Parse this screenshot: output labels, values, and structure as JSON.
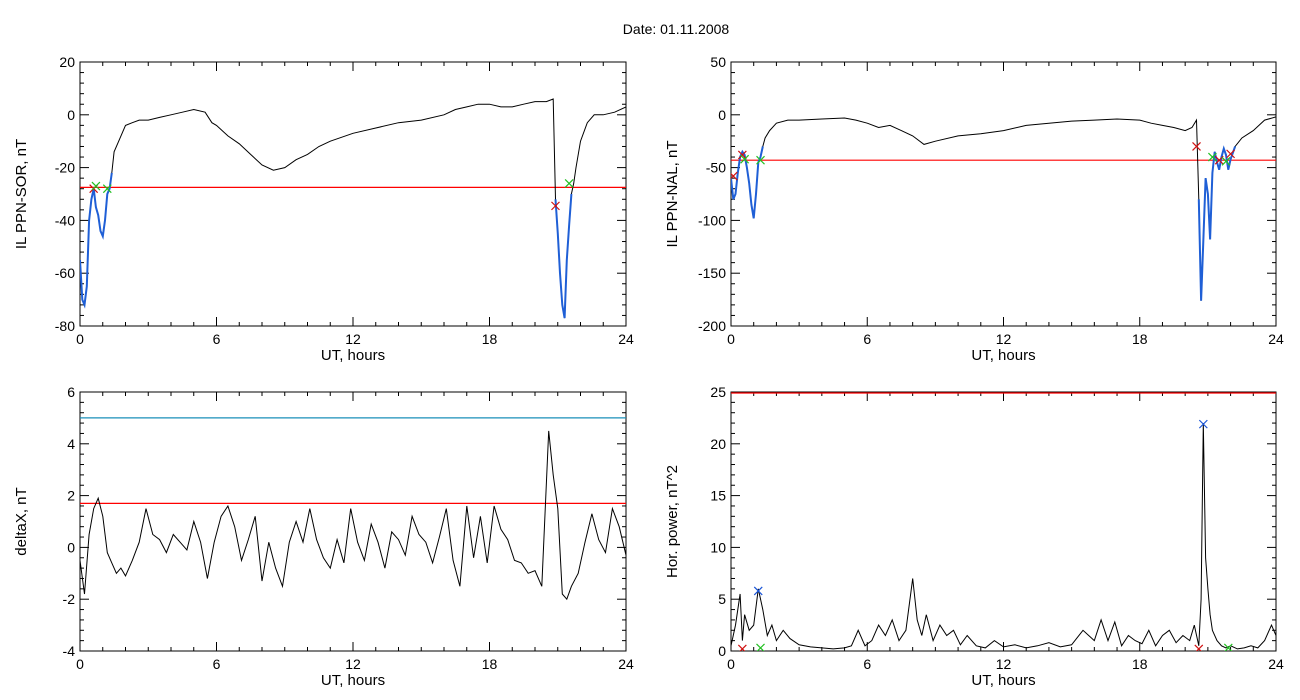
{
  "header": {
    "date_label": "Date:  01.11.2008"
  },
  "colors": {
    "signal": "#000000",
    "highlight": "#1f5fd6",
    "threshold_red": "#ff0000",
    "threshold_teal": "#1a8fb8",
    "marker_red": "#d01010",
    "marker_green": "#22c022",
    "marker_blue": "#1a55d8"
  },
  "chart_data": [
    {
      "type": "line",
      "xlabel": "UT, hours",
      "ylabel": "IL PPN-SOR, nT",
      "xlim": [
        0,
        24
      ],
      "ylim": [
        -80,
        20
      ],
      "xticks": [
        0,
        6,
        12,
        18,
        24
      ],
      "yticks": [
        20,
        0,
        -20,
        -40,
        -60,
        -80
      ],
      "series": [
        {
          "x": [
            0,
            0.1,
            0.2,
            0.3,
            0.4,
            0.5,
            0.6,
            0.7,
            0.8,
            0.9,
            1.0,
            1.1,
            1.2,
            1.3,
            1.4,
            1.5,
            1.7,
            2.0,
            2.3,
            2.6,
            3.0,
            3.5,
            4.0,
            4.5,
            5.0,
            5.5,
            5.8,
            6.0,
            6.5,
            7.0,
            7.5,
            8.0,
            8.5,
            9.0,
            9.5,
            10.0,
            10.5,
            11.0,
            12.0,
            13.0,
            14.0,
            15.0,
            16.0,
            16.5,
            17.0,
            17.5,
            18.0,
            18.5,
            19.0,
            19.5,
            20.0,
            20.5,
            20.8,
            20.9,
            21.0,
            21.1,
            21.2,
            21.3,
            21.4,
            21.5,
            21.6,
            21.7,
            21.8,
            22.0,
            22.3,
            22.6,
            23.0,
            23.5,
            24.0
          ],
          "y": [
            -55,
            -70,
            -72,
            -65,
            -40,
            -32,
            -28,
            -35,
            -38,
            -44,
            -46,
            -40,
            -30,
            -28,
            -22,
            -14,
            -10,
            -4,
            -3,
            -2,
            -2,
            -1,
            0,
            1,
            2,
            1,
            -3,
            -4,
            -8,
            -11,
            -15,
            -19,
            -21,
            -20,
            -17,
            -15,
            -12,
            -10,
            -7,
            -5,
            -3,
            -2,
            0,
            2,
            3,
            4,
            4,
            3,
            3,
            4,
            5,
            5,
            6,
            -32,
            -45,
            -60,
            -72,
            -77,
            -55,
            -42,
            -30,
            -26,
            -20,
            -10,
            -3,
            0,
            0,
            1,
            3
          ]
        }
      ],
      "highlight_ranges": [
        [
          0,
          1.4
        ],
        [
          20.9,
          21.6
        ]
      ],
      "threshold": -27.5,
      "markers": [
        {
          "x": 0.6,
          "y": -28,
          "kind": "x",
          "color": "red"
        },
        {
          "x": 0.7,
          "y": -27,
          "kind": "x",
          "color": "green"
        },
        {
          "x": 1.2,
          "y": -28,
          "kind": "x",
          "color": "green"
        },
        {
          "x": 20.9,
          "y": -34.5,
          "kind": "x",
          "color": "red"
        },
        {
          "x": 21.5,
          "y": -26,
          "kind": "x",
          "color": "green"
        }
      ]
    },
    {
      "type": "line",
      "xlabel": "UT, hours",
      "ylabel": "IL PPN-NAL, nT",
      "xlim": [
        0,
        24
      ],
      "ylim": [
        -200,
        50
      ],
      "xticks": [
        0,
        6,
        12,
        18,
        24
      ],
      "yticks": [
        50,
        0,
        -50,
        -100,
        -150,
        -200
      ],
      "series": [
        {
          "x": [
            0,
            0.1,
            0.2,
            0.3,
            0.4,
            0.5,
            0.6,
            0.7,
            0.8,
            0.9,
            1.0,
            1.1,
            1.2,
            1.3,
            1.4,
            1.5,
            1.7,
            2.0,
            2.5,
            3.0,
            4.0,
            5.0,
            5.5,
            6.0,
            6.5,
            7.0,
            7.5,
            8.0,
            8.5,
            9.0,
            10.0,
            11.0,
            12.0,
            13.0,
            14.0,
            15.0,
            16.0,
            17.0,
            18.0,
            18.5,
            19.0,
            19.5,
            20.0,
            20.3,
            20.5,
            20.6,
            20.7,
            20.8,
            20.9,
            21.0,
            21.1,
            21.2,
            21.3,
            21.4,
            21.5,
            21.6,
            21.7,
            21.8,
            21.9,
            22.0,
            22.2,
            22.5,
            23.0,
            23.5,
            24.0
          ],
          "y": [
            -60,
            -80,
            -75,
            -55,
            -40,
            -35,
            -38,
            -50,
            -65,
            -85,
            -98,
            -75,
            -45,
            -40,
            -30,
            -22,
            -15,
            -8,
            -5,
            -5,
            -4,
            -3,
            -5,
            -8,
            -12,
            -10,
            -15,
            -20,
            -28,
            -25,
            -20,
            -18,
            -15,
            -10,
            -8,
            -6,
            -5,
            -4,
            -5,
            -8,
            -10,
            -12,
            -15,
            -12,
            -5,
            -80,
            -176,
            -120,
            -60,
            -75,
            -118,
            -55,
            -35,
            -45,
            -52,
            -40,
            -32,
            -38,
            -52,
            -42,
            -30,
            -22,
            -15,
            -5,
            -2
          ]
        }
      ],
      "highlight_ranges": [
        [
          0,
          1.4
        ],
        [
          20.6,
          22.2
        ]
      ],
      "threshold": -43,
      "markers": [
        {
          "x": 0.1,
          "y": -58,
          "kind": "x",
          "color": "red"
        },
        {
          "x": 0.5,
          "y": -38,
          "kind": "x",
          "color": "red"
        },
        {
          "x": 0.6,
          "y": -42,
          "kind": "x",
          "color": "green"
        },
        {
          "x": 1.3,
          "y": -43,
          "kind": "x",
          "color": "green"
        },
        {
          "x": 20.5,
          "y": -30,
          "kind": "x",
          "color": "red"
        },
        {
          "x": 21.2,
          "y": -40,
          "kind": "x",
          "color": "green"
        },
        {
          "x": 21.5,
          "y": -43,
          "kind": "x",
          "color": "red"
        },
        {
          "x": 21.8,
          "y": -44,
          "kind": "x",
          "color": "green"
        },
        {
          "x": 22.0,
          "y": -37,
          "kind": "x",
          "color": "red"
        }
      ]
    },
    {
      "type": "line",
      "xlabel": "UT, hours",
      "ylabel": "deltaX, nT",
      "xlim": [
        0,
        24
      ],
      "ylim": [
        -4,
        6
      ],
      "xticks": [
        0,
        6,
        12,
        18,
        24
      ],
      "yticks": [
        6,
        4,
        2,
        0,
        -2,
        -4
      ],
      "series": [
        {
          "x": [
            0,
            0.2,
            0.4,
            0.6,
            0.8,
            1.0,
            1.2,
            1.4,
            1.6,
            1.8,
            2.0,
            2.3,
            2.6,
            2.9,
            3.2,
            3.5,
            3.8,
            4.1,
            4.4,
            4.7,
            5.0,
            5.3,
            5.6,
            5.9,
            6.2,
            6.5,
            6.8,
            7.1,
            7.4,
            7.7,
            8.0,
            8.3,
            8.6,
            8.9,
            9.2,
            9.5,
            9.8,
            10.1,
            10.4,
            10.7,
            11.0,
            11.3,
            11.6,
            11.9,
            12.2,
            12.5,
            12.8,
            13.1,
            13.4,
            13.7,
            14.0,
            14.3,
            14.6,
            14.9,
            15.2,
            15.5,
            15.8,
            16.1,
            16.4,
            16.7,
            17.0,
            17.3,
            17.6,
            17.9,
            18.2,
            18.5,
            18.8,
            19.1,
            19.4,
            19.7,
            20.0,
            20.3,
            20.6,
            20.8,
            21.0,
            21.2,
            21.4,
            21.6,
            21.9,
            22.2,
            22.5,
            22.8,
            23.1,
            23.4,
            23.7,
            24.0
          ],
          "y": [
            -0.5,
            -1.8,
            0.5,
            1.5,
            1.9,
            1.2,
            -0.2,
            -0.6,
            -1.0,
            -0.8,
            -1.1,
            -0.5,
            0.2,
            1.5,
            0.5,
            0.3,
            -0.2,
            0.5,
            0.2,
            -0.1,
            1.0,
            0.2,
            -1.2,
            0.2,
            1.2,
            1.6,
            0.8,
            -0.5,
            0.3,
            1.2,
            -1.3,
            0.2,
            -0.8,
            -1.5,
            0.2,
            1.0,
            0.2,
            1.5,
            0.3,
            -0.4,
            -0.8,
            0.3,
            -0.6,
            1.5,
            0.2,
            -0.5,
            0.9,
            0.2,
            -0.8,
            0.6,
            0.3,
            -0.3,
            1.2,
            0.5,
            0.2,
            -0.6,
            0.4,
            1.5,
            -0.5,
            -1.5,
            1.6,
            -0.4,
            1.2,
            -0.6,
            1.6,
            0.7,
            0.3,
            -0.5,
            -0.6,
            -1.0,
            -0.9,
            -1.5,
            4.5,
            2.8,
            1.5,
            -1.8,
            -2.0,
            -1.5,
            -1.0,
            0.2,
            1.3,
            0.3,
            -0.2,
            1.5,
            0.8,
            -0.3
          ]
        }
      ],
      "thresholds": [
        {
          "y": 5.0,
          "color": "teal"
        },
        {
          "y": 1.7,
          "color": "red"
        }
      ]
    },
    {
      "type": "line",
      "xlabel": "UT, hours",
      "ylabel": "Hor. power, nT^2",
      "xlim": [
        0,
        24
      ],
      "ylim": [
        0,
        25
      ],
      "xticks": [
        0,
        6,
        12,
        18,
        24
      ],
      "yticks": [
        25,
        20,
        15,
        10,
        5,
        0
      ],
      "series": [
        {
          "x": [
            0,
            0.2,
            0.4,
            0.5,
            0.6,
            0.8,
            1.0,
            1.2,
            1.4,
            1.6,
            1.8,
            2.0,
            2.3,
            2.6,
            3.0,
            3.5,
            4.0,
            4.5,
            5.0,
            5.3,
            5.6,
            5.9,
            6.2,
            6.5,
            6.8,
            7.1,
            7.4,
            7.7,
            8.0,
            8.2,
            8.4,
            8.6,
            8.9,
            9.2,
            9.5,
            9.8,
            10.1,
            10.4,
            10.8,
            11.2,
            11.6,
            12.0,
            12.5,
            13.0,
            13.5,
            14.0,
            14.5,
            15.0,
            15.5,
            16.0,
            16.3,
            16.6,
            16.9,
            17.2,
            17.5,
            17.8,
            18.1,
            18.4,
            18.7,
            19.0,
            19.3,
            19.6,
            19.9,
            20.2,
            20.4,
            20.6,
            20.7,
            20.8,
            20.9,
            21.0,
            21.1,
            21.2,
            21.4,
            21.6,
            21.8,
            22.0,
            22.3,
            22.6,
            22.9,
            23.2,
            23.5,
            23.8,
            24.0
          ],
          "y": [
            0.5,
            2.5,
            5.5,
            1.0,
            3.5,
            2.0,
            2.5,
            6.0,
            4.0,
            1.5,
            2.5,
            1.0,
            2.0,
            1.2,
            0.6,
            0.4,
            0.3,
            0.2,
            0.3,
            0.5,
            2.0,
            0.5,
            1.0,
            2.5,
            1.5,
            3.0,
            1.0,
            2.0,
            7.0,
            3.0,
            1.5,
            3.5,
            1.0,
            2.5,
            1.5,
            2.0,
            0.6,
            1.5,
            0.5,
            0.3,
            1.0,
            0.4,
            0.6,
            0.3,
            0.5,
            0.8,
            0.4,
            0.6,
            2.0,
            1.0,
            3.0,
            1.0,
            2.8,
            0.5,
            1.5,
            1.0,
            0.7,
            2.0,
            0.5,
            1.5,
            2.0,
            0.8,
            1.5,
            1.0,
            2.5,
            0.5,
            5.0,
            22.0,
            9.0,
            6.0,
            3.5,
            2.0,
            1.0,
            0.5,
            0.3,
            0.5,
            0.2,
            0.3,
            0.5,
            0.3,
            1.0,
            2.5,
            1.5
          ]
        }
      ],
      "threshold": 25,
      "markers": [
        {
          "x": 0.5,
          "y": 0.2,
          "kind": "x",
          "color": "red"
        },
        {
          "x": 1.2,
          "y": 5.8,
          "kind": "x",
          "color": "blue"
        },
        {
          "x": 1.3,
          "y": 0.3,
          "kind": "x",
          "color": "green"
        },
        {
          "x": 20.6,
          "y": 0.2,
          "kind": "x",
          "color": "red"
        },
        {
          "x": 20.8,
          "y": 21.9,
          "kind": "x",
          "color": "blue"
        },
        {
          "x": 21.9,
          "y": 0.3,
          "kind": "x",
          "color": "green"
        }
      ]
    }
  ]
}
